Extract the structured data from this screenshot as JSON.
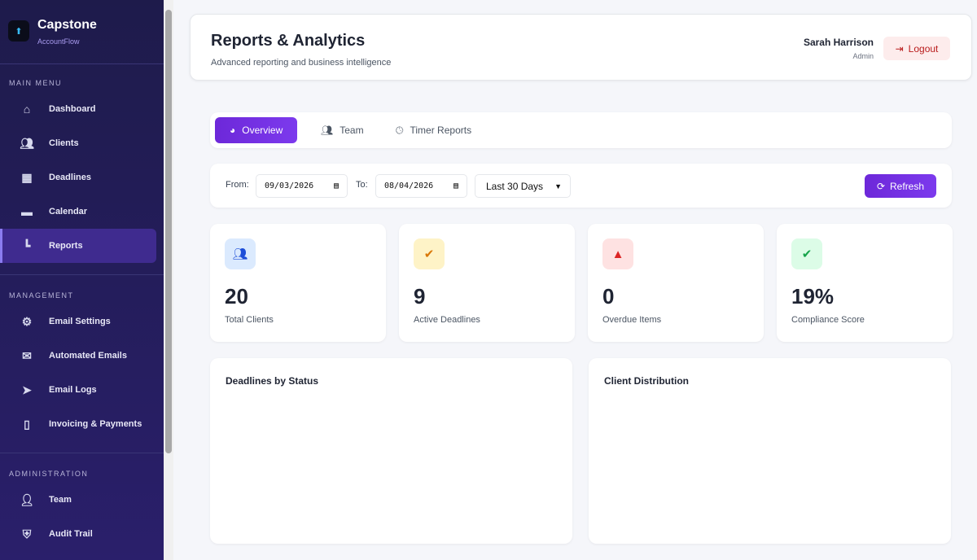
{
  "brand": {
    "title": "Capstone",
    "subtitle": "AccountFlow"
  },
  "sidebar": {
    "sections": [
      {
        "title": "MAIN MENU",
        "items": [
          {
            "label": "Dashboard",
            "icon": "home-icon"
          },
          {
            "label": "Clients",
            "icon": "users-icon"
          },
          {
            "label": "Deadlines",
            "icon": "calendar-grid-icon"
          },
          {
            "label": "Calendar",
            "icon": "calendar-icon"
          },
          {
            "label": "Reports",
            "icon": "chart-icon",
            "active": true
          }
        ]
      },
      {
        "title": "MANAGEMENT",
        "items": [
          {
            "label": "Email Settings",
            "icon": "gear-icon"
          },
          {
            "label": "Automated Emails",
            "icon": "envelope-icon"
          },
          {
            "label": "Email Logs",
            "icon": "paper-plane-icon"
          },
          {
            "label": "Invoicing & Payments",
            "icon": "invoice-icon"
          }
        ]
      },
      {
        "title": "ADMINISTRATION",
        "items": [
          {
            "label": "Team",
            "icon": "user-icon"
          },
          {
            "label": "Audit Trail",
            "icon": "shield-icon"
          }
        ]
      }
    ]
  },
  "header": {
    "title": "Reports & Analytics",
    "subtitle": "Advanced reporting and business intelligence",
    "user_name": "Sarah Harrison",
    "user_role": "Admin",
    "logout_label": "Logout"
  },
  "tabs": [
    {
      "label": "Overview",
      "active": true
    },
    {
      "label": "Team"
    },
    {
      "label": "Timer Reports"
    }
  ],
  "filters": {
    "from_label": "From:",
    "from_value": "09/03/2026",
    "to_label": "To:",
    "to_value": "08/04/2026",
    "range_value": "Last 30 Days",
    "refresh_label": "Refresh"
  },
  "stats": [
    {
      "value": "20",
      "label": "Total Clients",
      "icon": "users-icon",
      "color": "#1d4ed8",
      "bg": "#dbeafe"
    },
    {
      "value": "9",
      "label": "Active Deadlines",
      "icon": "calendar-check-icon",
      "color": "#d97706",
      "bg": "#fef3c7"
    },
    {
      "value": "0",
      "label": "Overdue Items",
      "icon": "warning-icon",
      "color": "#dc2626",
      "bg": "#fee2e2"
    },
    {
      "value": "19%",
      "label": "Compliance Score",
      "icon": "check-circle-icon",
      "color": "#16a34a",
      "bg": "#dcfce7"
    }
  ],
  "charts": [
    {
      "title": "Deadlines by Status"
    },
    {
      "title": "Client Distribution"
    }
  ],
  "colors": {
    "accent": "#7c3aed",
    "sidebar": "#1e1b4b"
  }
}
